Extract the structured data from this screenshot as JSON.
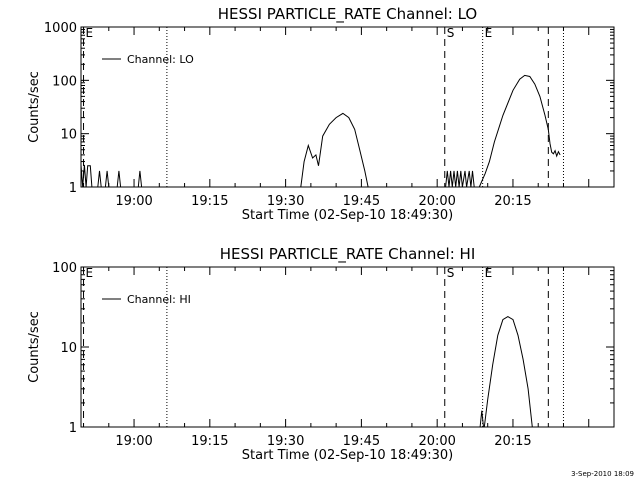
{
  "footer": {
    "timestamp": "3-Sep-2010 18:09"
  },
  "chart_data": [
    {
      "type": "line",
      "title": "HESSI PARTICLE_RATE Channel: LO",
      "xlabel": "Start Time (02-Sep-10 18:49:30)",
      "ylabel": "Counts/sec",
      "y_scale": "log",
      "xlim": [
        "18:49:30",
        "20:35:00"
      ],
      "ylim": [
        1,
        1000
      ],
      "xticks": [
        "19:00",
        "19:15",
        "19:30",
        "19:45",
        "20:00",
        "20:15"
      ],
      "yticks": [
        "1",
        "10",
        "100",
        "1000"
      ],
      "legend": {
        "label": "Channel: LO",
        "position": "top-left"
      },
      "markers": [
        {
          "time": "18:50:00",
          "style": "dashed",
          "label": "E"
        },
        {
          "time": "19:06:30",
          "style": "dotted",
          "label": ""
        },
        {
          "time": "20:01:30",
          "style": "dashed",
          "label": "S"
        },
        {
          "time": "20:09:00",
          "style": "dotted",
          "label": "E"
        },
        {
          "time": "20:22:00",
          "style": "dashed",
          "label": ""
        },
        {
          "time": "20:25:00",
          "style": "dotted",
          "label": ""
        }
      ],
      "series": [
        {
          "name": "Channel: LO",
          "segments": [
            [
              [
                "18:49:30",
                2.6
              ],
              [
                "18:49:50",
                1
              ],
              [
                "18:50:10",
                2.6
              ],
              [
                "18:50:30",
                1
              ],
              [
                "18:50:50",
                2.5
              ],
              [
                "18:51:20",
                2.5
              ],
              [
                "18:51:40",
                1
              ]
            ],
            [
              [
                "18:52:50",
                1
              ],
              [
                "18:53:10",
                2
              ],
              [
                "18:53:30",
                1
              ]
            ],
            [
              [
                "18:54:20",
                1
              ],
              [
                "18:54:40",
                2
              ],
              [
                "18:55:00",
                1
              ]
            ],
            [
              [
                "18:56:40",
                1
              ],
              [
                "18:57:00",
                2
              ],
              [
                "18:57:20",
                1
              ]
            ],
            [
              [
                "19:00:50",
                1
              ],
              [
                "19:01:10",
                2
              ],
              [
                "19:01:30",
                1
              ]
            ],
            [
              [
                "19:33:00",
                1
              ],
              [
                "19:33:40",
                3
              ],
              [
                "19:34:30",
                6
              ],
              [
                "19:35:20",
                3.5
              ],
              [
                "19:36:00",
                4
              ],
              [
                "19:36:30",
                2.5
              ],
              [
                "19:37:20",
                9
              ],
              [
                "19:38:40",
                15
              ],
              [
                "19:40:00",
                20
              ],
              [
                "19:41:20",
                24
              ],
              [
                "19:42:30",
                20
              ],
              [
                "19:43:40",
                12
              ],
              [
                "19:44:40",
                5
              ],
              [
                "19:45:40",
                2
              ],
              [
                "19:46:20",
                1
              ]
            ],
            [
              [
                "20:01:40",
                1
              ],
              [
                "20:02:00",
                2
              ],
              [
                "20:02:20",
                1
              ],
              [
                "20:02:40",
                2
              ],
              [
                "20:03:00",
                1
              ],
              [
                "20:03:20",
                2
              ],
              [
                "20:03:40",
                1
              ],
              [
                "20:04:00",
                2
              ],
              [
                "20:04:20",
                1
              ],
              [
                "20:04:40",
                2
              ],
              [
                "20:05:00",
                1
              ],
              [
                "20:05:30",
                2
              ],
              [
                "20:05:50",
                1
              ],
              [
                "20:06:20",
                2
              ],
              [
                "20:06:40",
                1
              ],
              [
                "20:07:00",
                2
              ],
              [
                "20:07:20",
                1
              ]
            ],
            [
              [
                "20:08:20",
                1
              ],
              [
                "20:09:30",
                1.8
              ],
              [
                "20:10:20",
                3
              ],
              [
                "20:11:20",
                7
              ],
              [
                "20:13:00",
                22
              ],
              [
                "20:15:00",
                65
              ],
              [
                "20:16:20",
                105
              ],
              [
                "20:17:20",
                124
              ],
              [
                "20:18:20",
                118
              ],
              [
                "20:19:20",
                85
              ],
              [
                "20:20:20",
                50
              ],
              [
                "20:21:20",
                22
              ],
              [
                "20:22:00",
                12
              ],
              [
                "20:22:20",
                6.5
              ],
              [
                "20:22:40",
                4.5
              ],
              [
                "20:23:00",
                4.2
              ],
              [
                "20:23:20",
                4.8
              ],
              [
                "20:23:40",
                3.8
              ],
              [
                "20:24:00",
                4.6
              ],
              [
                "20:24:20",
                4
              ]
            ]
          ]
        }
      ]
    },
    {
      "type": "line",
      "title": "HESSI PARTICLE_RATE Channel: HI",
      "xlabel": "Start Time (02-Sep-10 18:49:30)",
      "ylabel": "Counts/sec",
      "y_scale": "log",
      "xlim": [
        "18:49:30",
        "20:35:00"
      ],
      "ylim": [
        1,
        100
      ],
      "xticks": [
        "19:00",
        "19:15",
        "19:30",
        "19:45",
        "20:00",
        "20:15"
      ],
      "yticks": [
        "1",
        "10",
        "100"
      ],
      "legend": {
        "label": "Channel: HI",
        "position": "top-left"
      },
      "markers": [
        {
          "time": "18:50:00",
          "style": "dashed",
          "label": "E"
        },
        {
          "time": "19:06:30",
          "style": "dotted",
          "label": ""
        },
        {
          "time": "20:01:30",
          "style": "dashed",
          "label": "S"
        },
        {
          "time": "20:09:00",
          "style": "dotted",
          "label": "E"
        },
        {
          "time": "20:22:00",
          "style": "dashed",
          "label": ""
        },
        {
          "time": "20:25:00",
          "style": "dotted",
          "label": ""
        }
      ],
      "series": [
        {
          "name": "Channel: HI",
          "segments": [
            [
              [
                "20:08:30",
                1
              ],
              [
                "20:08:50",
                1.6
              ],
              [
                "20:09:10",
                1
              ]
            ],
            [
              [
                "20:09:20",
                1
              ],
              [
                "20:10:00",
                2.2
              ],
              [
                "20:11:00",
                6
              ],
              [
                "20:12:00",
                14
              ],
              [
                "20:13:00",
                22
              ],
              [
                "20:14:00",
                24
              ],
              [
                "20:15:00",
                22
              ],
              [
                "20:16:00",
                14
              ],
              [
                "20:17:00",
                7
              ],
              [
                "20:18:00",
                3
              ],
              [
                "20:18:50",
                1
              ]
            ]
          ]
        }
      ]
    }
  ]
}
